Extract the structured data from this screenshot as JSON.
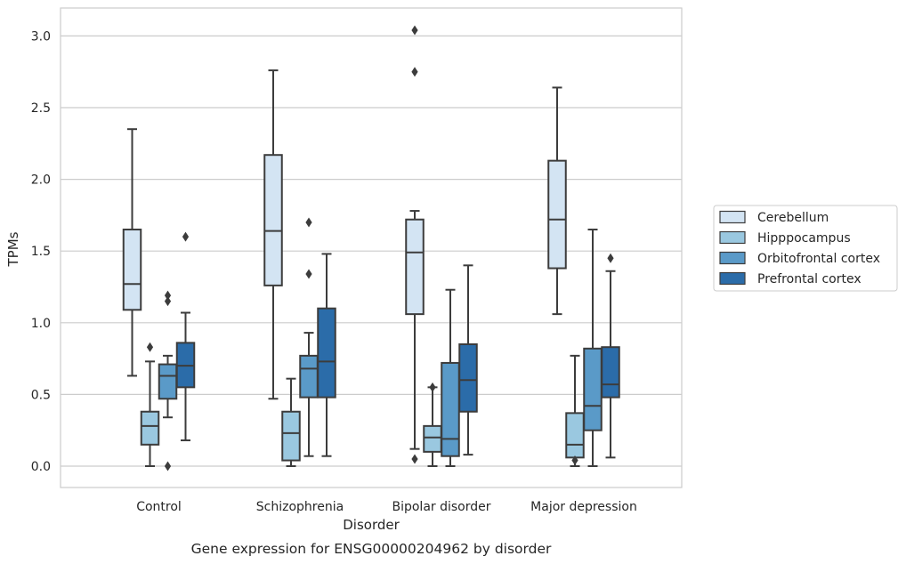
{
  "chart_data": {
    "type": "box",
    "title": "",
    "caption": "Gene expression for ENSG00000204962 by disorder",
    "xlabel": "Disorder",
    "ylabel": "TPMs",
    "ylim": [
      -0.15,
      3.2
    ],
    "yticks": [
      0.0,
      0.5,
      1.0,
      1.5,
      2.0,
      2.5,
      3.0
    ],
    "ytick_labels": [
      "0.0",
      "0.5",
      "1.0",
      "1.5",
      "2.0",
      "2.5",
      "3.0"
    ],
    "grid": "horizontal",
    "legend_position": "right",
    "categories": [
      "Control",
      "Schizophrenia",
      "Bipolar disorder",
      "Major depression"
    ],
    "series": [
      {
        "name": "Cerebellum",
        "color": "#d3e4f3",
        "boxes": [
          {
            "whisker_low": 0.63,
            "q1": 1.09,
            "median": 1.27,
            "q3": 1.65,
            "whisker_high": 2.35,
            "outliers": []
          },
          {
            "whisker_low": 0.47,
            "q1": 1.26,
            "median": 1.64,
            "q3": 2.17,
            "whisker_high": 2.76,
            "outliers": []
          },
          {
            "whisker_low": 0.12,
            "q1": 1.06,
            "median": 1.49,
            "q3": 1.72,
            "whisker_high": 1.78,
            "outliers": [
              0.05,
              2.75,
              3.04
            ]
          },
          {
            "whisker_low": 1.06,
            "q1": 1.38,
            "median": 1.72,
            "q3": 2.13,
            "whisker_high": 2.64,
            "outliers": []
          }
        ]
      },
      {
        "name": "Hipppocampus",
        "color": "#9ac8e0",
        "boxes": [
          {
            "whisker_low": 0.0,
            "q1": 0.15,
            "median": 0.28,
            "q3": 0.38,
            "whisker_high": 0.73,
            "outliers": [
              0.83
            ]
          },
          {
            "whisker_low": 0.0,
            "q1": 0.04,
            "median": 0.23,
            "q3": 0.38,
            "whisker_high": 0.61,
            "outliers": []
          },
          {
            "whisker_low": 0.0,
            "q1": 0.1,
            "median": 0.2,
            "q3": 0.28,
            "whisker_high": 0.55,
            "outliers": [
              0.55
            ]
          },
          {
            "whisker_low": 0.0,
            "q1": 0.06,
            "median": 0.15,
            "q3": 0.37,
            "whisker_high": 0.77,
            "outliers": [
              0.04
            ]
          }
        ]
      },
      {
        "name": "Orbitofrontal cortex",
        "color": "#5a9ac8",
        "boxes": [
          {
            "whisker_low": 0.34,
            "q1": 0.47,
            "median": 0.63,
            "q3": 0.71,
            "whisker_high": 0.77,
            "outliers": [
              0.0,
              1.15,
              1.19
            ]
          },
          {
            "whisker_low": 0.07,
            "q1": 0.48,
            "median": 0.68,
            "q3": 0.77,
            "whisker_high": 0.93,
            "outliers": [
              1.34,
              1.7
            ]
          },
          {
            "whisker_low": 0.0,
            "q1": 0.07,
            "median": 0.19,
            "q3": 0.72,
            "whisker_high": 1.23,
            "outliers": []
          },
          {
            "whisker_low": 0.0,
            "q1": 0.25,
            "median": 0.42,
            "q3": 0.82,
            "whisker_high": 1.65,
            "outliers": []
          }
        ]
      },
      {
        "name": "Prefrontal cortex",
        "color": "#2b6ca9",
        "boxes": [
          {
            "whisker_low": 0.18,
            "q1": 0.55,
            "median": 0.7,
            "q3": 0.86,
            "whisker_high": 1.07,
            "outliers": [
              1.6
            ]
          },
          {
            "whisker_low": 0.07,
            "q1": 0.48,
            "median": 0.73,
            "q3": 1.1,
            "whisker_high": 1.48,
            "outliers": []
          },
          {
            "whisker_low": 0.08,
            "q1": 0.38,
            "median": 0.6,
            "q3": 0.85,
            "whisker_high": 1.4,
            "outliers": []
          },
          {
            "whisker_low": 0.06,
            "q1": 0.48,
            "median": 0.57,
            "q3": 0.83,
            "whisker_high": 1.36,
            "outliers": [
              1.45
            ]
          }
        ]
      }
    ]
  }
}
